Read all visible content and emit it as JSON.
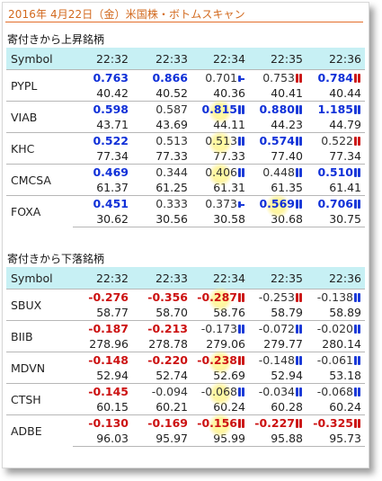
{
  "title": "2016年 4月22日（金）米国株・ボトムスキャン",
  "colors": {
    "title": "#d2691e",
    "header_bg": "#c7f0f4",
    "up": "#1030d8",
    "down": "#cc1111"
  },
  "sections": [
    {
      "label": "寄付きから上昇銘柄",
      "symbol_header": "Symbol",
      "times": [
        "22:32",
        "22:33",
        "22:34",
        "22:35",
        "22:36"
      ],
      "rows": [
        {
          "symbol": "PYPL",
          "cells": [
            {
              "chg": "0.763",
              "price": "40.42",
              "style": "blue bold",
              "icon": ""
            },
            {
              "chg": "0.866",
              "price": "40.52",
              "style": "blue bold",
              "icon": ""
            },
            {
              "chg": "0.701",
              "price": "40.36",
              "style": "plain",
              "icon": "blue-dash"
            },
            {
              "chg": "0.753",
              "price": "40.41",
              "style": "plain",
              "icon": "red"
            },
            {
              "chg": "0.784",
              "price": "40.44",
              "style": "blue bold",
              "icon": "red"
            }
          ]
        },
        {
          "symbol": "VIAB",
          "cells": [
            {
              "chg": "0.598",
              "price": "43.71",
              "style": "blue bold",
              "icon": ""
            },
            {
              "chg": "0.587",
              "price": "43.69",
              "style": "plain",
              "icon": ""
            },
            {
              "chg": "0.815",
              "price": "44.11",
              "style": "blue bold",
              "icon": "blue",
              "burst": true
            },
            {
              "chg": "0.880",
              "price": "44.23",
              "style": "blue bold",
              "icon": "blue"
            },
            {
              "chg": "1.185",
              "price": "44.79",
              "style": "blue bold",
              "icon": "blue"
            }
          ]
        },
        {
          "symbol": "KHC",
          "cells": [
            {
              "chg": "0.522",
              "price": "77.34",
              "style": "blue bold",
              "icon": ""
            },
            {
              "chg": "0.513",
              "price": "77.33",
              "style": "plain",
              "icon": ""
            },
            {
              "chg": "0.513",
              "price": "77.33",
              "style": "plain",
              "icon": "blue",
              "burst": true
            },
            {
              "chg": "0.574",
              "price": "77.40",
              "style": "blue bold",
              "icon": "blue"
            },
            {
              "chg": "0.522",
              "price": "77.34",
              "style": "plain",
              "icon": "red"
            }
          ]
        },
        {
          "symbol": "CMCSA",
          "cells": [
            {
              "chg": "0.469",
              "price": "61.37",
              "style": "blue bold",
              "icon": ""
            },
            {
              "chg": "0.344",
              "price": "61.25",
              "style": "plain",
              "icon": ""
            },
            {
              "chg": "0.406",
              "price": "61.31",
              "style": "plain",
              "icon": "blue",
              "burst": true
            },
            {
              "chg": "0.448",
              "price": "61.35",
              "style": "plain",
              "icon": "blue"
            },
            {
              "chg": "0.510",
              "price": "61.41",
              "style": "blue bold",
              "icon": "blue"
            }
          ]
        },
        {
          "symbol": "FOXA",
          "cells": [
            {
              "chg": "0.451",
              "price": "30.62",
              "style": "blue bold",
              "icon": ""
            },
            {
              "chg": "0.333",
              "price": "30.56",
              "style": "plain",
              "icon": ""
            },
            {
              "chg": "0.373",
              "price": "30.58",
              "style": "plain",
              "icon": "blue-dash"
            },
            {
              "chg": "0.569",
              "price": "30.68",
              "style": "blue bold",
              "icon": "blue",
              "burst": true
            },
            {
              "chg": "0.706",
              "price": "30.75",
              "style": "blue bold",
              "icon": "blue"
            }
          ]
        }
      ]
    },
    {
      "label": "寄付きから下落銘柄",
      "symbol_header": "Symbol",
      "times": [
        "22:32",
        "22:33",
        "22:34",
        "22:35",
        "22:36"
      ],
      "rows": [
        {
          "symbol": "SBUX",
          "cells": [
            {
              "chg": "-0.276",
              "price": "58.77",
              "style": "red bold",
              "icon": ""
            },
            {
              "chg": "-0.356",
              "price": "58.70",
              "style": "red bold",
              "icon": ""
            },
            {
              "chg": "-0.287",
              "price": "58.76",
              "style": "red bold",
              "icon": "red",
              "burst": true
            },
            {
              "chg": "-0.253",
              "price": "58.79",
              "style": "plain",
              "icon": "red"
            },
            {
              "chg": "-0.138",
              "price": "58.89",
              "style": "plain",
              "icon": "blue"
            }
          ]
        },
        {
          "symbol": "BIIB",
          "cells": [
            {
              "chg": "-0.187",
              "price": "278.96",
              "style": "red bold",
              "icon": ""
            },
            {
              "chg": "-0.213",
              "price": "278.78",
              "style": "red bold",
              "icon": ""
            },
            {
              "chg": "-0.173",
              "price": "279.06",
              "style": "plain",
              "icon": "blue"
            },
            {
              "chg": "-0.072",
              "price": "279.77",
              "style": "plain",
              "icon": "blue"
            },
            {
              "chg": "-0.020",
              "price": "280.14",
              "style": "plain",
              "icon": "blue"
            }
          ]
        },
        {
          "symbol": "MDVN",
          "cells": [
            {
              "chg": "-0.148",
              "price": "52.94",
              "style": "red bold",
              "icon": ""
            },
            {
              "chg": "-0.220",
              "price": "52.74",
              "style": "red bold",
              "icon": ""
            },
            {
              "chg": "-0.238",
              "price": "52.69",
              "style": "red bold",
              "icon": "red",
              "burst": true
            },
            {
              "chg": "-0.148",
              "price": "52.94",
              "style": "plain",
              "icon": "blue"
            },
            {
              "chg": "-0.061",
              "price": "53.18",
              "style": "plain",
              "icon": "blue"
            }
          ]
        },
        {
          "symbol": "CTSH",
          "cells": [
            {
              "chg": "-0.145",
              "price": "60.15",
              "style": "red bold",
              "icon": ""
            },
            {
              "chg": "-0.094",
              "price": "60.21",
              "style": "plain",
              "icon": ""
            },
            {
              "chg": "-0.068",
              "price": "60.24",
              "style": "plain",
              "icon": "blue",
              "burst": true
            },
            {
              "chg": "-0.034",
              "price": "60.28",
              "style": "plain",
              "icon": "blue"
            },
            {
              "chg": "-0.068",
              "price": "60.24",
              "style": "plain",
              "icon": "blue"
            }
          ]
        },
        {
          "symbol": "ADBE",
          "cells": [
            {
              "chg": "-0.130",
              "price": "96.03",
              "style": "red bold",
              "icon": ""
            },
            {
              "chg": "-0.169",
              "price": "95.97",
              "style": "red bold",
              "icon": ""
            },
            {
              "chg": "-0.156",
              "price": "95.99",
              "style": "red bold",
              "icon": "red",
              "burst": true
            },
            {
              "chg": "-0.227",
              "price": "95.88",
              "style": "red bold",
              "icon": "red"
            },
            {
              "chg": "-0.325",
              "price": "95.73",
              "style": "red bold",
              "icon": "red"
            }
          ]
        }
      ]
    }
  ]
}
